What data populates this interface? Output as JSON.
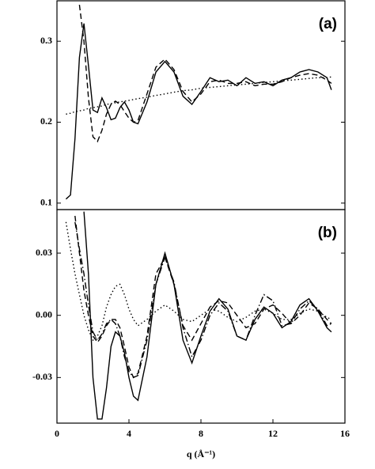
{
  "chart_data": [
    {
      "type": "line",
      "label": "(a)",
      "x": [
        0.5,
        0.75,
        1,
        1.25,
        1.5,
        1.75,
        2,
        2.25,
        2.5,
        2.75,
        3,
        3.25,
        3.5,
        3.75,
        4,
        4.25,
        4.5,
        5,
        5.5,
        6,
        6.5,
        7,
        7.5,
        8,
        8.5,
        9,
        9.5,
        10,
        10.5,
        11,
        11.5,
        12,
        12.5,
        13,
        13.5,
        14,
        14.5,
        15,
        15.25
      ],
      "xlim": [
        0,
        16
      ],
      "ylim": [
        0.092,
        0.35
      ],
      "yticks": [
        0.1,
        0.2,
        0.3
      ],
      "series": [
        {
          "color": "#000",
          "style": "solid",
          "values": [
            0.105,
            0.11,
            0.18,
            0.28,
            0.322,
            0.27,
            0.215,
            0.212,
            0.23,
            0.218,
            0.203,
            0.205,
            0.218,
            0.225,
            0.215,
            0.2,
            0.198,
            0.225,
            0.262,
            0.275,
            0.262,
            0.232,
            0.222,
            0.238,
            0.255,
            0.25,
            0.252,
            0.245,
            0.255,
            0.248,
            0.25,
            0.245,
            0.252,
            0.255,
            0.262,
            0.265,
            0.262,
            0.255,
            0.24
          ]
        },
        {
          "color": "#000",
          "style": "dashed",
          "values": [
            null,
            null,
            null,
            0.345,
            0.3,
            0.23,
            0.182,
            0.176,
            0.19,
            0.21,
            0.222,
            0.226,
            0.222,
            0.213,
            0.205,
            0.2,
            0.202,
            0.235,
            0.268,
            0.278,
            0.265,
            0.238,
            0.225,
            0.235,
            0.25,
            0.252,
            0.248,
            0.248,
            0.25,
            0.245,
            0.247,
            0.247,
            0.25,
            0.255,
            0.258,
            0.26,
            0.258,
            0.252,
            0.248
          ]
        },
        {
          "color": "#000",
          "style": "dotted",
          "values": [
            0.21,
            0.211,
            0.213,
            0.214,
            0.215,
            0.217,
            0.218,
            0.219,
            0.22,
            0.222,
            0.223,
            0.224,
            0.225,
            0.226,
            0.227,
            0.228,
            0.229,
            0.231,
            0.233,
            0.235,
            0.237,
            0.239,
            0.24,
            0.242,
            0.243,
            0.244,
            0.245,
            0.246,
            0.247,
            0.248,
            0.249,
            0.25,
            0.251,
            0.252,
            0.253,
            0.254,
            0.255,
            0.255,
            0.256
          ]
        }
      ]
    },
    {
      "type": "line",
      "label": "(b)",
      "x": [
        0.5,
        0.75,
        1,
        1.25,
        1.5,
        1.75,
        2,
        2.25,
        2.5,
        2.75,
        3,
        3.25,
        3.5,
        3.75,
        4,
        4.25,
        4.5,
        5,
        5.5,
        6,
        6.5,
        7,
        7.5,
        8,
        8.5,
        9,
        9.5,
        10,
        10.5,
        11,
        11.5,
        12,
        12.5,
        13,
        13.5,
        14,
        14.5,
        15,
        15.25
      ],
      "xlim": [
        0,
        16
      ],
      "ylim": [
        -0.052,
        0.051
      ],
      "xticks": [
        0,
        4,
        8,
        12,
        16
      ],
      "yticks": [
        -0.03,
        {
          "value": 0,
          "label": "0.00"
        },
        0.03
      ],
      "xlabel": "q (Å⁻¹)",
      "series": [
        {
          "color": "#000",
          "style": "solid",
          "values": [
            null,
            null,
            null,
            null,
            0.05,
            0.02,
            -0.03,
            -0.05,
            -0.05,
            -0.035,
            -0.015,
            -0.008,
            -0.01,
            -0.018,
            -0.03,
            -0.039,
            -0.041,
            -0.02,
            0.015,
            0.03,
            0.015,
            -0.012,
            -0.023,
            -0.01,
            0.002,
            0.008,
            0.003,
            -0.01,
            -0.012,
            -0.002,
            0.004,
            0.001,
            -0.006,
            -0.003,
            0.005,
            0.008,
            0.002,
            -0.006,
            -0.008
          ]
        },
        {
          "color": "#000",
          "style": "dashed",
          "values": [
            null,
            null,
            0.048,
            0.03,
            0.012,
            0,
            -0.01,
            -0.013,
            -0.01,
            -0.005,
            -0.002,
            -0.002,
            -0.006,
            -0.015,
            -0.025,
            -0.03,
            -0.028,
            -0.01,
            0.02,
            0.028,
            0.015,
            -0.005,
            -0.012,
            -0.004,
            0.004,
            0.007,
            0.006,
            0,
            -0.006,
            -0.004,
            0.003,
            0.005,
            0.001,
            -0.004,
            0,
            0.006,
            0.003,
            -0.002,
            -0.004
          ]
        },
        {
          "color": "#000",
          "style": "dashdot",
          "values": [
            null,
            null,
            0.045,
            0.032,
            0.02,
            0.005,
            -0.008,
            -0.012,
            -0.009,
            -0.004,
            -0.002,
            -0.004,
            -0.01,
            -0.02,
            -0.027,
            -0.03,
            -0.029,
            -0.012,
            0.015,
            0.028,
            0.016,
            -0.006,
            -0.02,
            -0.012,
            0,
            0.006,
            0.002,
            -0.01,
            -0.012,
            0,
            0.01,
            0.007,
            -0.005,
            -0.004,
            0.003,
            0.007,
            0.003,
            -0.005,
            -0.004
          ]
        },
        {
          "color": "#000",
          "style": "dotted",
          "values": [
            0.045,
            0.032,
            0.02,
            0.01,
            0,
            -0.007,
            -0.012,
            -0.01,
            -0.005,
            0.004,
            0.01,
            0.014,
            0.015,
            0.01,
            0.003,
            -0.002,
            -0.005,
            -0.002,
            0.002,
            0.005,
            0.002,
            -0.002,
            -0.003,
            0,
            0.003,
            0.002,
            -0.001,
            -0.003,
            -0.001,
            0.002,
            0.003,
            0.001,
            -0.002,
            -0.002,
            0.001,
            0.003,
            0.002,
            -0.001,
            -0.002
          ]
        }
      ]
    }
  ]
}
